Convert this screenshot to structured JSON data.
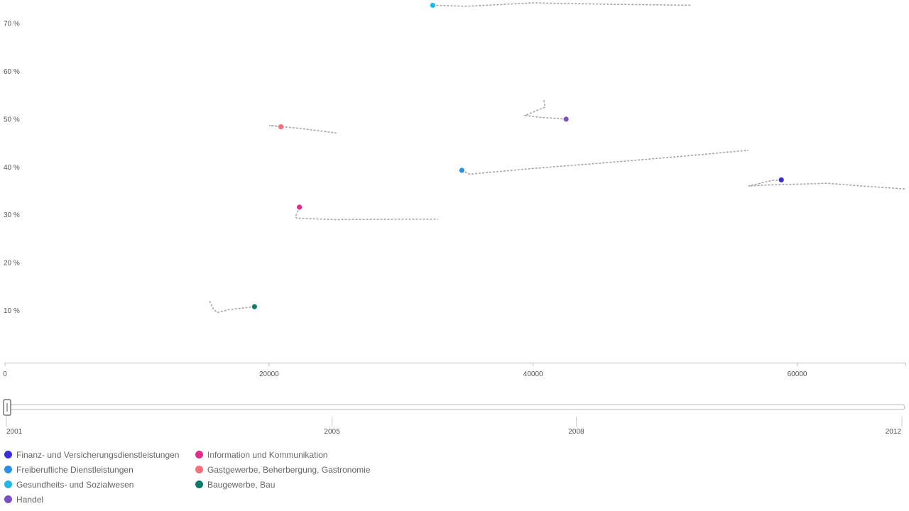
{
  "chart_data": {
    "type": "scatter",
    "title": "",
    "xlabel": "",
    "ylabel": "",
    "x_ticks": [
      0,
      20000,
      40000,
      60000
    ],
    "y_ticks": [
      10,
      20,
      30,
      40,
      50,
      60,
      70
    ],
    "y_tick_suffix": " %",
    "xlim": [
      0,
      68200
    ],
    "ylim": [
      -0.9,
      74.9
    ],
    "grid": false,
    "legend_position": "bottom-left",
    "series": [
      {
        "name": "Finanz- und Versicherungsdienstleistungen",
        "color": "#3a2fd6",
        "current": [
          58800,
          37.3
        ],
        "trail": [
          [
            58800,
            37.3
          ],
          [
            58100,
            37.2
          ],
          [
            56300,
            36.0
          ],
          [
            57400,
            36.2
          ],
          [
            60000,
            36.4
          ],
          [
            62300,
            36.6
          ],
          [
            65000,
            36.0
          ],
          [
            68200,
            35.4
          ]
        ]
      },
      {
        "name": "Freiberufliche Dienstleistungen",
        "color": "#2b8fe8",
        "current": [
          34600,
          39.3
        ],
        "trail": [
          [
            34600,
            39.3
          ],
          [
            35200,
            38.5
          ],
          [
            40000,
            39.7
          ],
          [
            46000,
            41.0
          ],
          [
            52000,
            42.4
          ],
          [
            56300,
            43.5
          ]
        ]
      },
      {
        "name": "Gesundheits- und Sozialwesen",
        "color": "#22b8e6",
        "current": [
          32400,
          73.8
        ],
        "trail": [
          [
            32400,
            73.8
          ],
          [
            35000,
            73.6
          ],
          [
            40000,
            74.3
          ],
          [
            46000,
            74.0
          ],
          [
            52000,
            73.8
          ]
        ]
      },
      {
        "name": "Handel",
        "color": "#7a4fc0",
        "current": [
          42500,
          50.0
        ],
        "trail": [
          [
            42500,
            50.0
          ],
          [
            40500,
            50.4
          ],
          [
            39400,
            50.8
          ],
          [
            40900,
            52.5
          ],
          [
            40800,
            54.2
          ]
        ]
      },
      {
        "name": "Information und Kommunikation",
        "color": "#e22d8a",
        "current": [
          22300,
          31.6
        ],
        "trail": [
          [
            22300,
            31.6
          ],
          [
            22000,
            29.6
          ],
          [
            22100,
            29.3
          ],
          [
            25000,
            29.0
          ],
          [
            30000,
            29.1
          ],
          [
            32800,
            29.1
          ]
        ]
      },
      {
        "name": "Gastgewerbe, Beherbergung, Gastronomie",
        "color": "#f5707a",
        "current": [
          20900,
          48.4
        ],
        "trail": [
          [
            20900,
            48.4
          ],
          [
            20000,
            48.7
          ],
          [
            22500,
            48.0
          ],
          [
            25100,
            47.1
          ]
        ]
      },
      {
        "name": "Baugewerbe, Bau",
        "color": "#0d7a6e",
        "current": [
          18900,
          10.8
        ],
        "trail": [
          [
            18900,
            10.8
          ],
          [
            17000,
            10.2
          ],
          [
            16100,
            9.6
          ],
          [
            15800,
            10.2
          ],
          [
            15500,
            12.0
          ]
        ]
      }
    ]
  },
  "slider": {
    "ticks": [
      2001,
      2005,
      2008,
      2012
    ],
    "range": [
      2001,
      2012
    ],
    "current": 2001
  },
  "legend": [
    {
      "label": "Finanz- und Versicherungsdienstleistungen",
      "color": "#3a2fd6"
    },
    {
      "label": "Freiberufliche Dienstleistungen",
      "color": "#2b8fe8"
    },
    {
      "label": "Gesundheits- und Sozialwesen",
      "color": "#22b8e6"
    },
    {
      "label": "Handel",
      "color": "#7a4fc0"
    },
    {
      "label": "Information und Kommunikation",
      "color": "#e22d8a"
    },
    {
      "label": "Gastgewerbe, Beherbergung, Gastronomie",
      "color": "#f5707a"
    },
    {
      "label": "Baugewerbe, Bau",
      "color": "#0d7a6e"
    }
  ]
}
